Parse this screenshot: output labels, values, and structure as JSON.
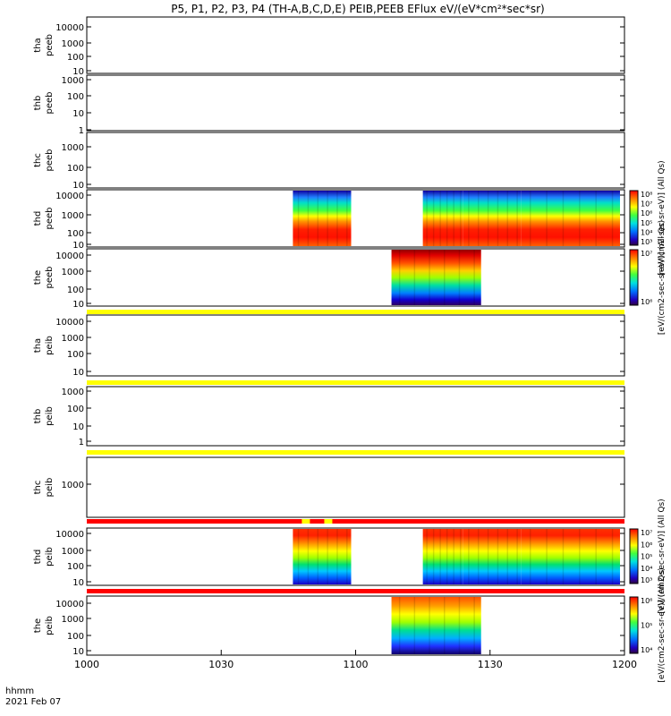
{
  "title": "P5, P1, P2, P3, P4 (TH-A,B,C,D,E) PEIB,PEEB EFlux eV/(eV*cm²*sec*sr)",
  "footer": {
    "label_time": "hhmm",
    "label_date": "2021 Feb 07"
  },
  "chart_data": {
    "type": "heatmap",
    "x_ticks": [
      "1000",
      "1030",
      "1100",
      "1130",
      "1200"
    ],
    "x_range": [
      "10:00",
      "12:00"
    ],
    "colors": {
      "quality_flag_ok": "#ffff00",
      "quality_flag_bad": "#ff0000",
      "quality_flag_marker": "#ffff00"
    },
    "panels": [
      {
        "probe": "tha",
        "instrument": "peeb",
        "ylog": true,
        "y_ticks": [
          "10000",
          "1000",
          "100",
          "10"
        ],
        "data": []
      },
      {
        "probe": "thb",
        "instrument": "peeb",
        "ylog": true,
        "y_ticks": [
          "1000",
          "100",
          "10",
          "1"
        ],
        "data": []
      },
      {
        "probe": "thc",
        "instrument": "peeb",
        "ylog": true,
        "y_ticks": [
          "1000",
          "100",
          "10"
        ],
        "data": []
      },
      {
        "probe": "thd",
        "instrument": "peeb",
        "ylog": true,
        "y_ticks": [
          "10000",
          "1000",
          "100",
          "10"
        ],
        "data": [
          [
            "10:46",
            "10:59"
          ],
          [
            "11:15",
            "11:24"
          ],
          [
            "11:24",
            "11:37"
          ],
          [
            "11:37",
            "11:59"
          ]
        ],
        "colorbar": {
          "ticks": [
            "10⁸",
            "10⁷",
            "10⁶",
            "10⁵",
            "10⁴",
            "10³"
          ],
          "label": "[eV/(cm2-sec-sr-eV)] (All Qs)"
        }
      },
      {
        "probe": "the",
        "instrument": "peeb",
        "ylog": true,
        "y_ticks": [
          "10000",
          "1000",
          "100",
          "10"
        ],
        "data": [
          [
            "11:08",
            "11:28"
          ]
        ],
        "colorbar": {
          "ticks": [
            "10⁷",
            "10⁶"
          ],
          "label": "[eV/(cm2-sec-sr-eV)] (All Qs)"
        }
      },
      {
        "probe": "tha",
        "instrument": "peib",
        "ylog": true,
        "y_ticks": [
          "10000",
          "1000",
          "100",
          "10"
        ],
        "data": []
      },
      {
        "probe": "thb",
        "instrument": "peib",
        "ylog": true,
        "y_ticks": [
          "1000",
          "100",
          "10",
          "1"
        ],
        "data": []
      },
      {
        "probe": "thc",
        "instrument": "peib",
        "ylog": true,
        "y_ticks": [
          "1000"
        ],
        "data": []
      },
      {
        "probe": "thd",
        "instrument": "peib",
        "ylog": true,
        "y_ticks": [
          "10000",
          "1000",
          "100",
          "10"
        ],
        "data": [
          [
            "10:46",
            "10:59"
          ],
          [
            "11:15",
            "11:24"
          ],
          [
            "11:24",
            "11:37"
          ],
          [
            "11:37",
            "11:59"
          ]
        ],
        "colorbar": {
          "ticks": [
            "10⁷",
            "10⁶",
            "10⁵",
            "10⁴",
            "10³"
          ],
          "label": "[eV/(cm2-sec-sr-eV)] (All Qs)"
        }
      },
      {
        "probe": "the",
        "instrument": "peib",
        "ylog": true,
        "y_ticks": [
          "10000",
          "1000",
          "100",
          "10"
        ],
        "data": [
          [
            "11:08",
            "11:28"
          ]
        ],
        "colorbar": {
          "ticks": [
            "10⁶",
            "10⁵",
            "10⁴"
          ],
          "label": "[eV/(cm2-sec-sr-eV)] (All Qs)"
        }
      }
    ]
  }
}
